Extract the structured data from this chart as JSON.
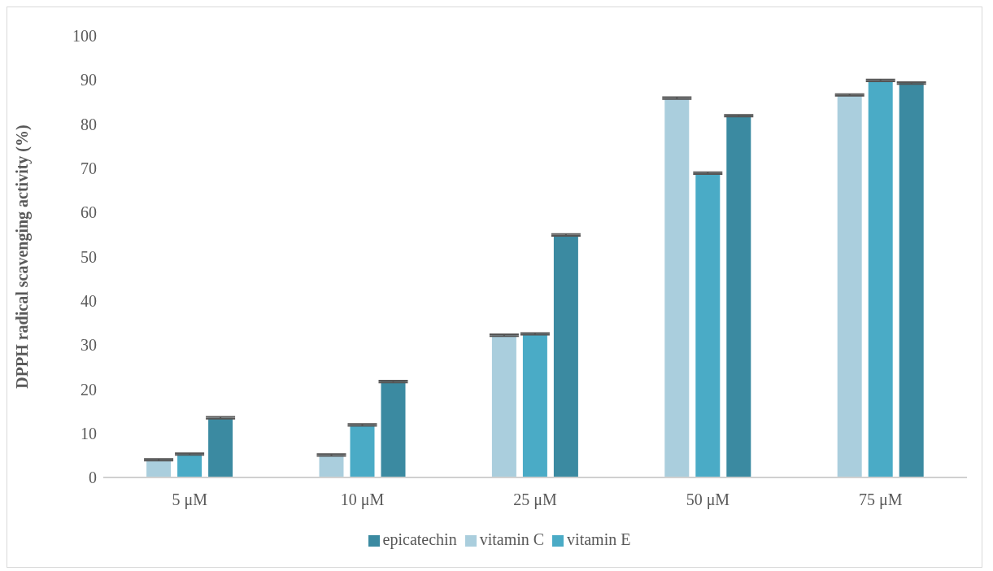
{
  "chart_data": {
    "type": "bar",
    "ylabel": "DPPH radical scavenging activity (%)",
    "categories": [
      "5 μM",
      "10 μM",
      "25 μM",
      "50 μM",
      "75 μM"
    ],
    "series": [
      {
        "name": "vitamin C",
        "color": "#aacedd",
        "values": [
          4.0,
          5.1,
          32.2,
          85.9,
          86.6
        ],
        "errors": [
          0.2,
          0.2,
          0.2,
          0.2,
          0.2
        ]
      },
      {
        "name": "vitamin E",
        "color": "#4aabc6",
        "values": [
          5.3,
          11.9,
          32.5,
          68.9,
          89.9
        ],
        "errors": [
          0.2,
          0.2,
          0.2,
          0.2,
          0.2
        ]
      },
      {
        "name": "epicatechin",
        "color": "#3b8aa1",
        "values": [
          13.5,
          21.7,
          54.9,
          81.9,
          89.3
        ],
        "errors": [
          0.2,
          0.2,
          0.2,
          0.2,
          0.2
        ]
      }
    ],
    "ylim": [
      0,
      100
    ],
    "yticks": [
      0,
      10,
      20,
      30,
      40,
      50,
      60,
      70,
      80,
      90,
      100
    ],
    "grid": false,
    "legend": "bottom"
  }
}
